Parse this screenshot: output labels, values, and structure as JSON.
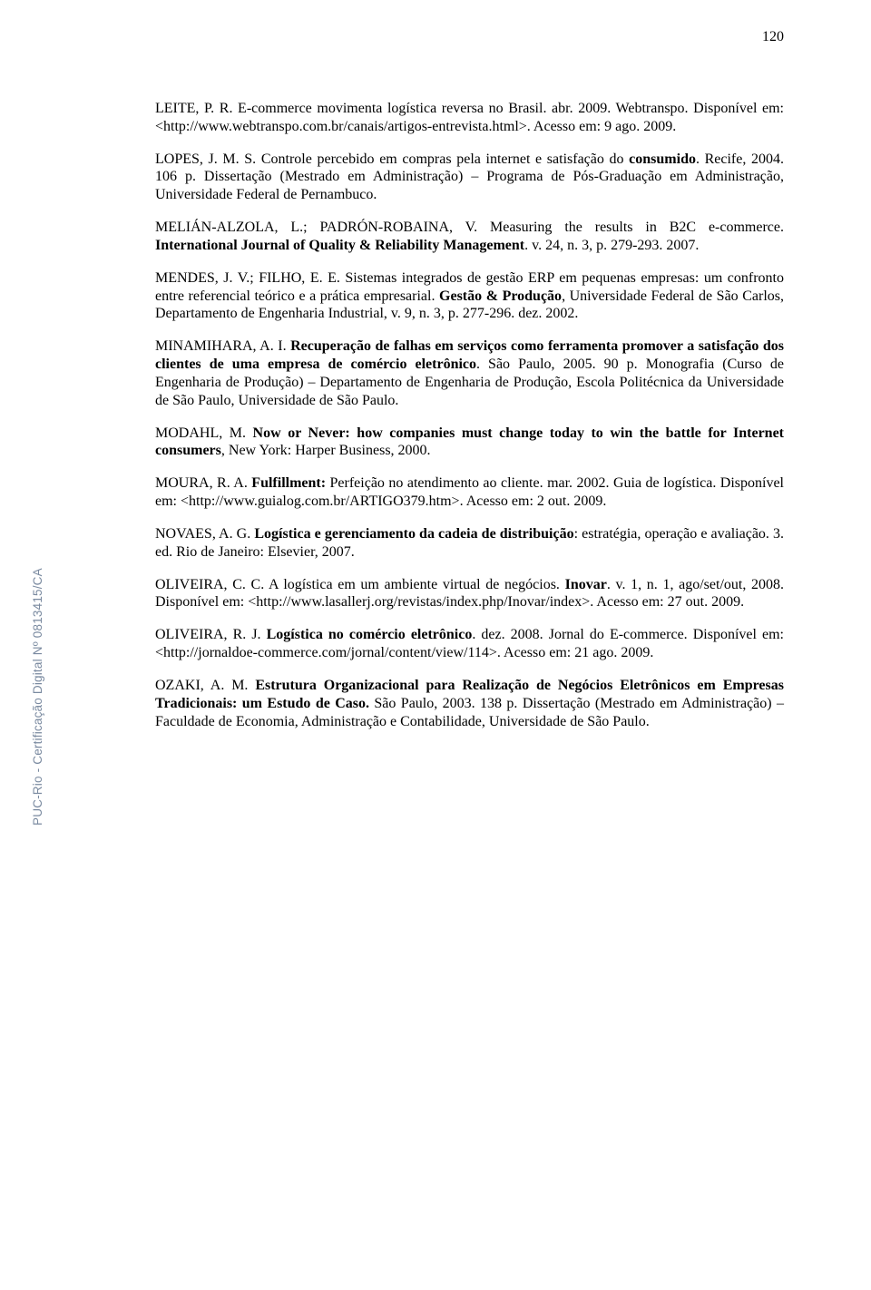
{
  "page_number": "120",
  "vertical_label": "PUC-Rio - Certificação Digital Nº 0813415/CA",
  "refs": {
    "r1": "LEITE, P. R. E-commerce movimenta logística reversa no Brasil. abr. 2009. Webtranspo. Disponível em: <http://www.webtranspo.com.br/canais/artigos-entrevista.html>. Acesso em: 9 ago. 2009.",
    "r2a": "LOPES, J. M. S. Controle percebido em compras pela internet e satisfação do ",
    "r2b": "consumido",
    "r2c": ". Recife, 2004. 106 p. Dissertação (Mestrado em Administração) – Programa de Pós-Graduação em Administração, Universidade Federal de Pernambuco.",
    "r3a": "MELIÁN-ALZOLA, L.; PADRÓN-ROBAINA, V. Measuring the results in B2C e-commerce. ",
    "r3b": "International Journal of Quality & Reliability Management",
    "r3c": ". v. 24, n. 3, p. 279-293. 2007.",
    "r4a": "MENDES, J. V.; FILHO, E. E. Sistemas integrados de gestão ERP em pequenas empresas: um confronto entre referencial teórico e a prática empresarial. ",
    "r4b": "Gestão & Produção",
    "r4c": ", Universidade Federal de São Carlos, Departamento de Engenharia Industrial, v. 9, n. 3, p. 277-296. dez. 2002.",
    "r5a": "MINAMIHARA, A. I. ",
    "r5b": "Recuperação de falhas em serviços como ferramenta promover a satisfação dos clientes de uma empresa de comércio eletrônico",
    "r5c": ". São Paulo, 2005. 90 p. Monografia (Curso de Engenharia de Produção) – Departamento de Engenharia de Produção, Escola Politécnica da Universidade de São Paulo, Universidade de São Paulo.",
    "r6a": "MODAHL, M. ",
    "r6b": "Now or Never: how companies must change today to win the battle for Internet consumers",
    "r6c": ", New York: Harper Business, 2000.",
    "r7a": "MOURA, R. A. ",
    "r7b": "Fulfillment:",
    "r7c": " Perfeição no atendimento ao cliente. mar. 2002. Guia de logística. Disponível em: <http://www.guialog.com.br/ARTIGO379.htm>. Acesso em: 2 out. 2009.",
    "r8a": "NOVAES, A. G. ",
    "r8b": "Logística e gerenciamento da cadeia de distribuição",
    "r8c": ": estratégia, operação e avaliação. 3. ed. Rio de Janeiro: Elsevier, 2007.",
    "r9a": "OLIVEIRA, C. C. A logística em um ambiente virtual de negócios. ",
    "r9b": "Inovar",
    "r9c": ". v. 1, n. 1, ago/set/out, 2008. Disponível em: <http://www.lasallerj.org/revistas/index.php/Inovar/index>. Acesso em: 27 out. 2009.",
    "r10a": "OLIVEIRA, R. J. ",
    "r10b": "Logística no comércio eletrônico",
    "r10c": ". dez. 2008. Jornal do E-commerce. Disponível em: <http://jornaldoe-commerce.com/jornal/content/view/114>. Acesso em: 21 ago. 2009.",
    "r11a": "OZAKI, A. M. ",
    "r11b": "Estrutura Organizacional para Realização de Negócios Eletrônicos em Empresas Tradicionais: um Estudo de Caso.",
    "r11c": " São Paulo, 2003. 138 p. Dissertação (Mestrado em Administração) – Faculdade de Economia, Administração e Contabilidade, Universidade de São Paulo."
  }
}
